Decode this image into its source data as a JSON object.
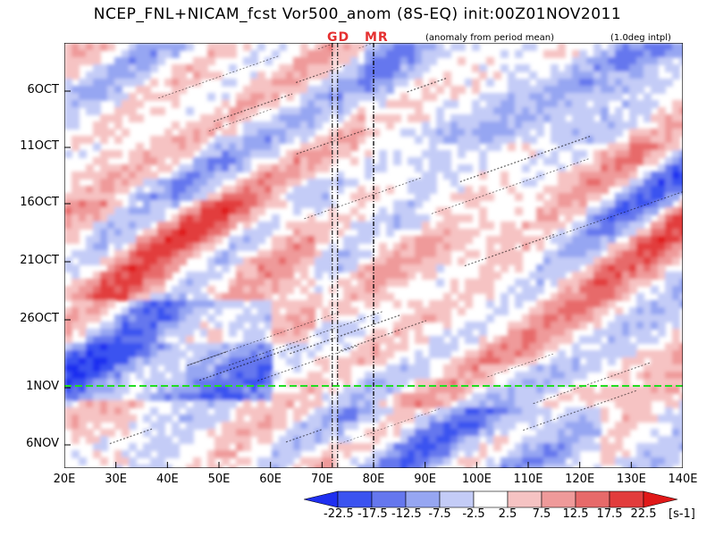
{
  "title": "NCEP_FNL+NICAM_fcst Vor500_anom (8S-EQ) init:00Z01NOV2011",
  "subtitle_left": "(anomaly from period mean)",
  "subtitle_right": "(1.0deg intpl)",
  "markers": {
    "gd": "GD",
    "mr": "MR"
  },
  "now_line": {
    "label": "1NOV",
    "color": "#22dd22"
  },
  "chart_data": {
    "type": "heatmap",
    "title": "NCEP_FNL+NICAM_fcst Vor500_anom (8S-EQ) init:00Z01NOV2011",
    "x_axis": {
      "ticks": [
        "20E",
        "30E",
        "40E",
        "50E",
        "60E",
        "70E",
        "80E",
        "90E",
        "100E",
        "110E",
        "120E",
        "130E",
        "140E"
      ],
      "range": [
        20,
        140
      ],
      "unit": "deg E"
    },
    "y_axis": {
      "ticks": [
        "6OCT",
        "11OCT",
        "16OCT",
        "21OCT",
        "26OCT",
        "1NOV",
        "6NOV"
      ],
      "direction": "time increasing downward"
    },
    "reference_lines": [
      {
        "name": "GD",
        "x": [
          72,
          73
        ]
      },
      {
        "name": "MR",
        "x": [
          80
        ]
      },
      {
        "name": "1NOV",
        "y": "1NOV",
        "color": "#22dd22"
      }
    ],
    "colorbar": {
      "levels": [
        "-22.5",
        "-17.5",
        "-12.5",
        "-7.5",
        "-2.5",
        "2.5",
        "7.5",
        "12.5",
        "17.5",
        "22.5"
      ],
      "colors": [
        "#1f2ff0",
        "#3b53f0",
        "#6577ee",
        "#96a6f2",
        "#c4ccf7",
        "#ffffff",
        "#f6c3c3",
        "#ef9a9a",
        "#e76a6a",
        "#e23c3c",
        "#e01818"
      ],
      "units": "[s-1]"
    }
  }
}
